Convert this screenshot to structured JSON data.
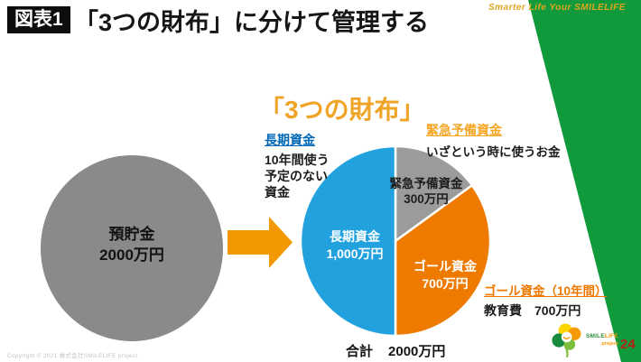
{
  "slide": {
    "badge": "図表1",
    "title": "「3つの財布」に分けて管理する",
    "watermark": "Smarter Life Your SMILELIFE",
    "copyright": "Copyright © 2021 株式会社SMILELIFE project",
    "page_number": "24",
    "logo": {
      "text_smile": "SMILE",
      "text_life": "LIFE",
      "text_project": "project"
    }
  },
  "diagram": {
    "source_circle": {
      "label": "預貯金",
      "amount": "2000万円"
    },
    "annotations": {
      "long_term": {
        "title": "長期資金",
        "desc_lines": [
          "10年間使う",
          "予定のない",
          "資金"
        ]
      },
      "emergency": {
        "title": "緊急予備資金",
        "desc": "いざという時に使うお金"
      },
      "goal": {
        "title": "ゴール資金（10年間）",
        "desc": "教育費　700万円"
      }
    }
  },
  "chart_data": {
    "type": "pie",
    "title": "「3つの財布」",
    "start_angle_deg": 0,
    "direction": "clockwise",
    "unit": "万円",
    "slices": [
      {
        "label": "緊急予備資金",
        "value": 300,
        "value_label": "300万円",
        "percent": 15,
        "color": "#9B9B9C"
      },
      {
        "label": "ゴール資金",
        "value": 700,
        "value_label": "700万円",
        "percent": 35,
        "color": "#EF7A00"
      },
      {
        "label": "長期資金",
        "value": 1000,
        "value_label": "1,000万円",
        "percent": 50,
        "color": "#21A2DF"
      }
    ],
    "total": 2000,
    "total_label": "合計",
    "total_value_label": "2000万円"
  },
  "colors": {
    "band_green": "#109A3C",
    "heading_orange": "#EFA428",
    "arrow_orange": "#F39800",
    "long_term_blue": "#0068B7",
    "emergency_amber": "#F5A623",
    "goal_orange": "#EE7800",
    "source_circle_gray": "#8A8A8C",
    "page_number_red": "#B02418",
    "watermark_gold": "#DFA51E"
  }
}
